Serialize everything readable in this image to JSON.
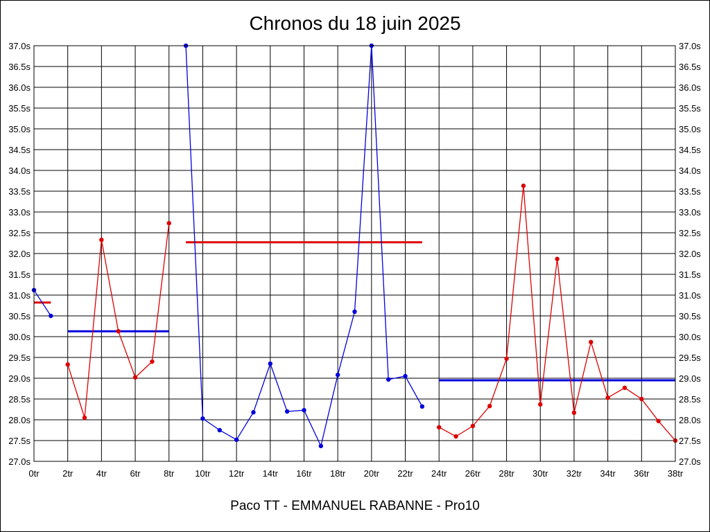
{
  "chart_data": {
    "type": "line",
    "title": "Chronos du 18 juin 2025",
    "footer": "Paco TT - EMMANUEL RABANNE - Pro10",
    "xlim": [
      0,
      38
    ],
    "ylim": [
      27.0,
      37.0
    ],
    "x_ticks": [
      0,
      2,
      4,
      6,
      8,
      10,
      12,
      14,
      16,
      18,
      20,
      22,
      24,
      26,
      28,
      30,
      32,
      34,
      36,
      38
    ],
    "x_tick_labels": [
      "0tr",
      "2tr",
      "4tr",
      "6tr",
      "8tr",
      "10tr",
      "12tr",
      "14tr",
      "16tr",
      "18tr",
      "20tr",
      "22tr",
      "24tr",
      "26tr",
      "28tr",
      "30tr",
      "32tr",
      "34tr",
      "36tr",
      "38tr"
    ],
    "y_ticks": [
      27.0,
      27.5,
      28.0,
      28.5,
      29.0,
      29.5,
      30.0,
      30.5,
      31.0,
      31.5,
      32.0,
      32.5,
      33.0,
      33.5,
      34.0,
      34.5,
      35.0,
      35.5,
      36.0,
      36.5,
      37.0
    ],
    "y_tick_labels": [
      "27.0s",
      "27.5s",
      "28.0s",
      "28.5s",
      "29.0s",
      "29.5s",
      "30.0s",
      "30.5s",
      "31.0s",
      "31.5s",
      "32.0s",
      "32.5s",
      "33.0s",
      "33.5s",
      "34.0s",
      "34.5s",
      "35.0s",
      "35.5s",
      "36.0s",
      "36.5s",
      "37.0s"
    ],
    "grid": true,
    "series": [
      {
        "color": "#0000dd",
        "x": [
          0,
          1
        ],
        "y": [
          31.12,
          30.5
        ]
      },
      {
        "color": "#dd0000",
        "x": [
          2,
          3,
          4,
          5,
          6,
          7,
          8
        ],
        "y": [
          29.33,
          28.05,
          32.33,
          30.13,
          29.02,
          29.4,
          32.73
        ]
      },
      {
        "color": "#0000dd",
        "x": [
          9,
          10,
          11,
          12,
          13,
          14,
          15,
          16,
          17,
          18,
          19,
          20,
          21,
          22,
          23
        ],
        "y": [
          37.0,
          28.03,
          27.75,
          27.52,
          28.18,
          29.35,
          28.2,
          28.23,
          27.37,
          29.08,
          30.6,
          37.0,
          28.97,
          29.05,
          28.32
        ]
      },
      {
        "color": "#dd0000",
        "x": [
          24,
          25,
          26,
          27,
          28,
          29,
          30,
          31,
          32,
          33,
          34,
          35,
          36,
          37,
          38
        ],
        "y": [
          27.82,
          27.6,
          27.85,
          28.33,
          29.47,
          33.63,
          28.37,
          31.87,
          28.17,
          29.87,
          28.53,
          28.77,
          28.5,
          27.97,
          27.5
        ]
      }
    ],
    "averages": [
      {
        "color": "#dd0000",
        "x_start": 0,
        "x_end": 1,
        "y": 30.82
      },
      {
        "color": "#0000dd",
        "x_start": 2,
        "x_end": 8,
        "y": 30.13
      },
      {
        "color": "#dd0000",
        "x_start": 9,
        "x_end": 23,
        "y": 32.27
      },
      {
        "color": "#0000dd",
        "x_start": 24,
        "x_end": 38,
        "y": 28.95
      }
    ]
  }
}
